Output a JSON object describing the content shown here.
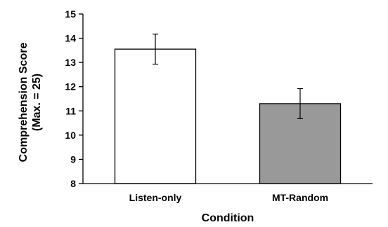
{
  "chart_data": {
    "type": "bar",
    "categories": [
      "Listen-only",
      "MT-Random"
    ],
    "values": [
      13.55,
      11.3
    ],
    "error": [
      0.62,
      0.62
    ],
    "bar_colors": [
      "#ffffff",
      "#999999"
    ],
    "xlabel": "Condition",
    "ylabel_lines": [
      "Comprehension Score",
      "(Max. = 25)"
    ],
    "ylim": [
      8,
      15
    ],
    "yticks": [
      8,
      9,
      10,
      11,
      12,
      13,
      14,
      15
    ],
    "grid": false,
    "legend": "none"
  }
}
